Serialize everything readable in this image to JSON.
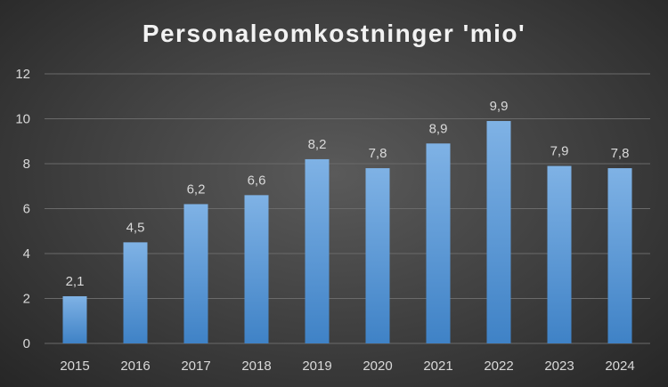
{
  "chart_data": {
    "type": "bar",
    "title": "Personaleomkostninger 'mio'",
    "xlabel": "",
    "ylabel": "",
    "categories": [
      "2015",
      "2016",
      "2017",
      "2018",
      "2019",
      "2020",
      "2021",
      "2022",
      "2023",
      "2024"
    ],
    "values": [
      2.1,
      4.5,
      6.2,
      6.6,
      8.2,
      7.8,
      8.9,
      9.9,
      7.9,
      7.8
    ],
    "value_labels": [
      "2,1",
      "4,5",
      "6,2",
      "6,6",
      "8,2",
      "7,8",
      "8,9",
      "9,9",
      "7,9",
      "7,8"
    ],
    "ylim": [
      0,
      12
    ],
    "yticks": [
      "0",
      "2",
      "4",
      "6",
      "8",
      "10",
      "12"
    ],
    "grid": true,
    "legend": "none",
    "bar_color": "#5b9bd5"
  }
}
